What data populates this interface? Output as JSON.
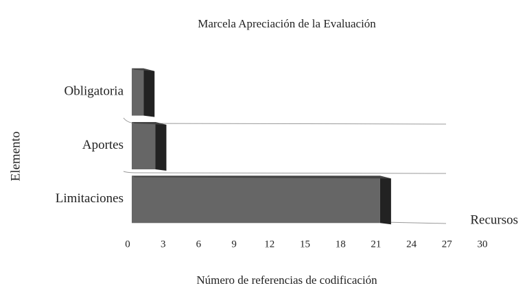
{
  "chart_data": {
    "type": "bar3d",
    "title": "Marcela Apreciación de la Evaluación",
    "xlabel": "Número de referencias de codificación",
    "ylabel": "Elemento",
    "categories": [
      "Obligatoria",
      "Aportes",
      "Limitaciones"
    ],
    "series": [
      {
        "name": "Recursos",
        "color": "#666666",
        "values": [
          1,
          2,
          21
        ]
      }
    ],
    "xlim": [
      0,
      30
    ],
    "xticks": [
      0,
      3,
      6,
      9,
      12,
      15,
      18,
      21,
      24,
      27,
      30
    ]
  }
}
